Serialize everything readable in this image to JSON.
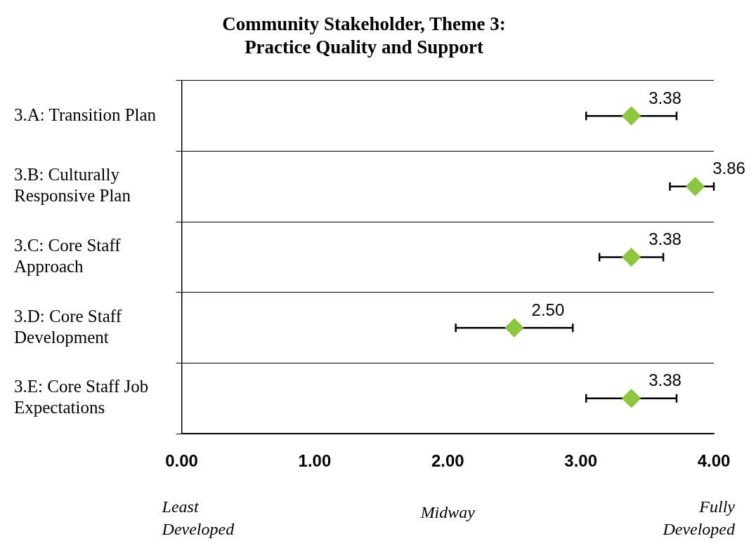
{
  "chart_data": {
    "type": "scatter",
    "orientation": "horizontal",
    "title": "Community Stakeholder, Theme 3: Practice Quality and Support",
    "categories": [
      "3.A: Transition Plan",
      "3.B: Culturally Responsive Plan",
      "3.C: Core Staff Approach",
      "3.D: Core Staff Development",
      "3.E: Core Staff Job Expectations"
    ],
    "series": [
      {
        "color": "#8cc63f",
        "values": [
          3.38,
          3.86,
          3.38,
          2.5,
          3.38
        ],
        "value_labels": [
          "3.38",
          "3.86",
          "3.38",
          "2.50",
          "3.38"
        ],
        "errors": [
          [
            3.04,
            3.72
          ],
          [
            3.67,
            4.0
          ],
          [
            3.14,
            3.62
          ],
          [
            2.06,
            2.94
          ],
          [
            3.04,
            3.72
          ]
        ]
      }
    ],
    "xlim": [
      0,
      4
    ],
    "xticks": [
      {
        "value": 0,
        "label": "0.00"
      },
      {
        "value": 1,
        "label": "1.00"
      },
      {
        "value": 2,
        "label": "2.00"
      },
      {
        "value": 3,
        "label": "3.00"
      },
      {
        "value": 4,
        "label": "4.00"
      }
    ],
    "marker": "diamond",
    "grid": "y",
    "annotations": [
      "Least Developed",
      "Midway",
      "Fully Developed"
    ]
  }
}
